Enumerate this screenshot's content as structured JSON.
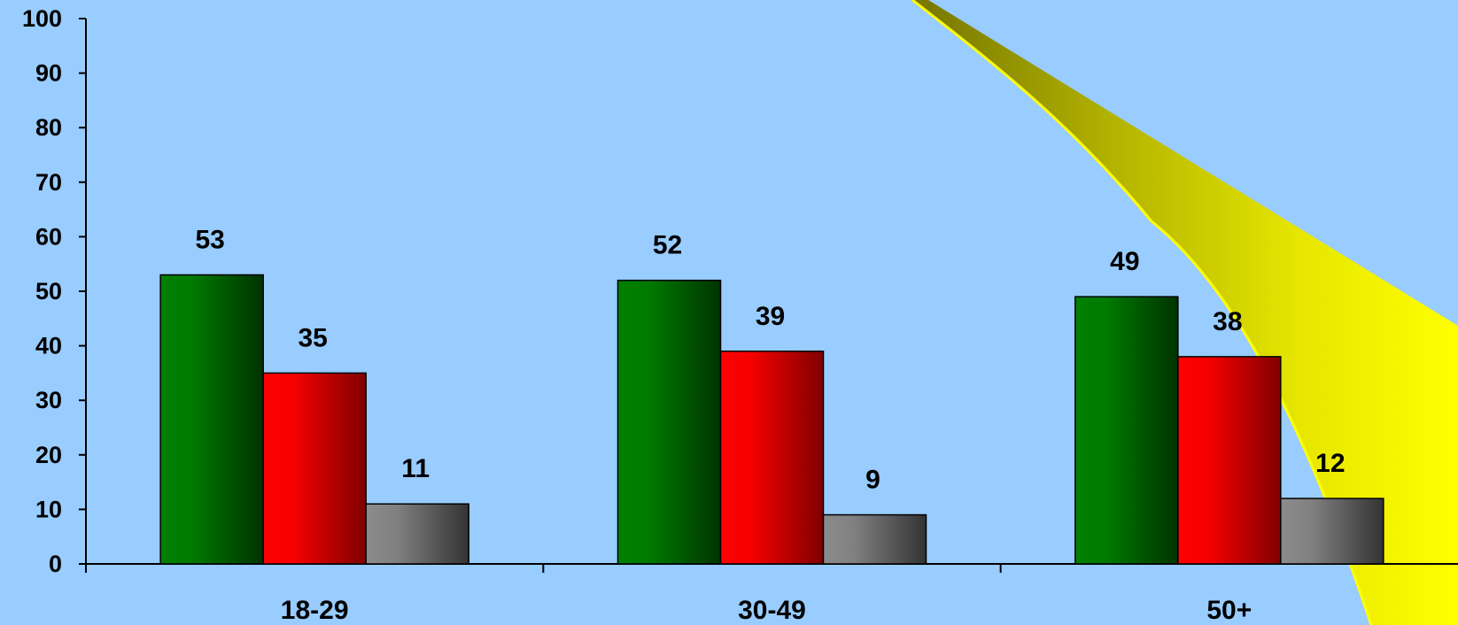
{
  "chart_data": {
    "type": "bar",
    "categories": [
      "18-29",
      "30-49",
      "50+"
    ],
    "series": [
      {
        "color": "#008000",
        "values": [
          53,
          52,
          49
        ]
      },
      {
        "color": "#ff0000",
        "values": [
          35,
          39,
          38
        ]
      },
      {
        "color": "#808080",
        "values": [
          11,
          9,
          12
        ]
      }
    ],
    "ylim": [
      0,
      100
    ],
    "yticks": [
      "0",
      "10",
      "20",
      "30",
      "40",
      "50",
      "60",
      "70",
      "80",
      "90",
      "100"
    ],
    "data_labels": [
      [
        "53",
        "52",
        "49"
      ],
      [
        "35",
        "39",
        "38"
      ],
      [
        "11",
        "9",
        "12"
      ]
    ],
    "grid": false,
    "legend": "none"
  },
  "decoration": {
    "accent_color": "#ffff00"
  }
}
